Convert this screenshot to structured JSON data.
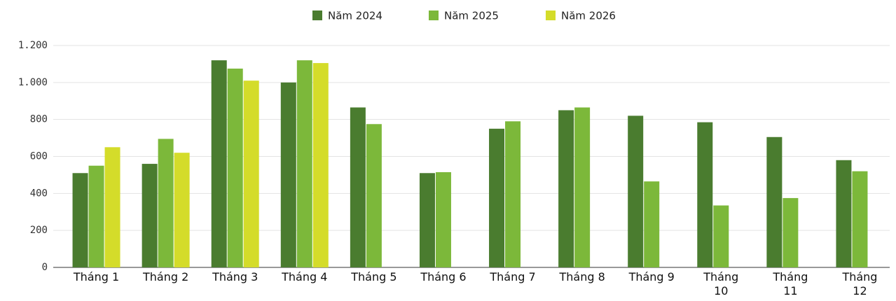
{
  "chart_data": {
    "type": "bar",
    "categories": [
      "Tháng 1",
      "Tháng 2",
      "Tháng 3",
      "Tháng 4",
      "Tháng 5",
      "Tháng 6",
      "Tháng 7",
      "Tháng 8",
      "Tháng 9",
      "Tháng 10",
      "Tháng 11",
      "Tháng 12"
    ],
    "series": [
      {
        "name": "Năm 2024",
        "color": "#4a7c2f",
        "values": [
          510,
          560,
          1120,
          1000,
          865,
          510,
          750,
          850,
          820,
          785,
          705,
          580
        ]
      },
      {
        "name": "Năm 2025",
        "color": "#7cb83a",
        "values": [
          550,
          695,
          1075,
          1120,
          775,
          515,
          790,
          865,
          465,
          335,
          375,
          520
        ]
      },
      {
        "name": "Năm 2026",
        "color": "#d4dc2a",
        "values": [
          650,
          620,
          1010,
          1105,
          null,
          null,
          null,
          null,
          null,
          null,
          null,
          null
        ]
      }
    ],
    "ylim": [
      0,
      1200
    ],
    "yticks": [
      0,
      200,
      400,
      600,
      800,
      {
        "value": 1000,
        "label": "1.000"
      },
      {
        "value": 1200,
        "label": "1.200"
      }
    ],
    "grid": true,
    "legend": "top"
  }
}
